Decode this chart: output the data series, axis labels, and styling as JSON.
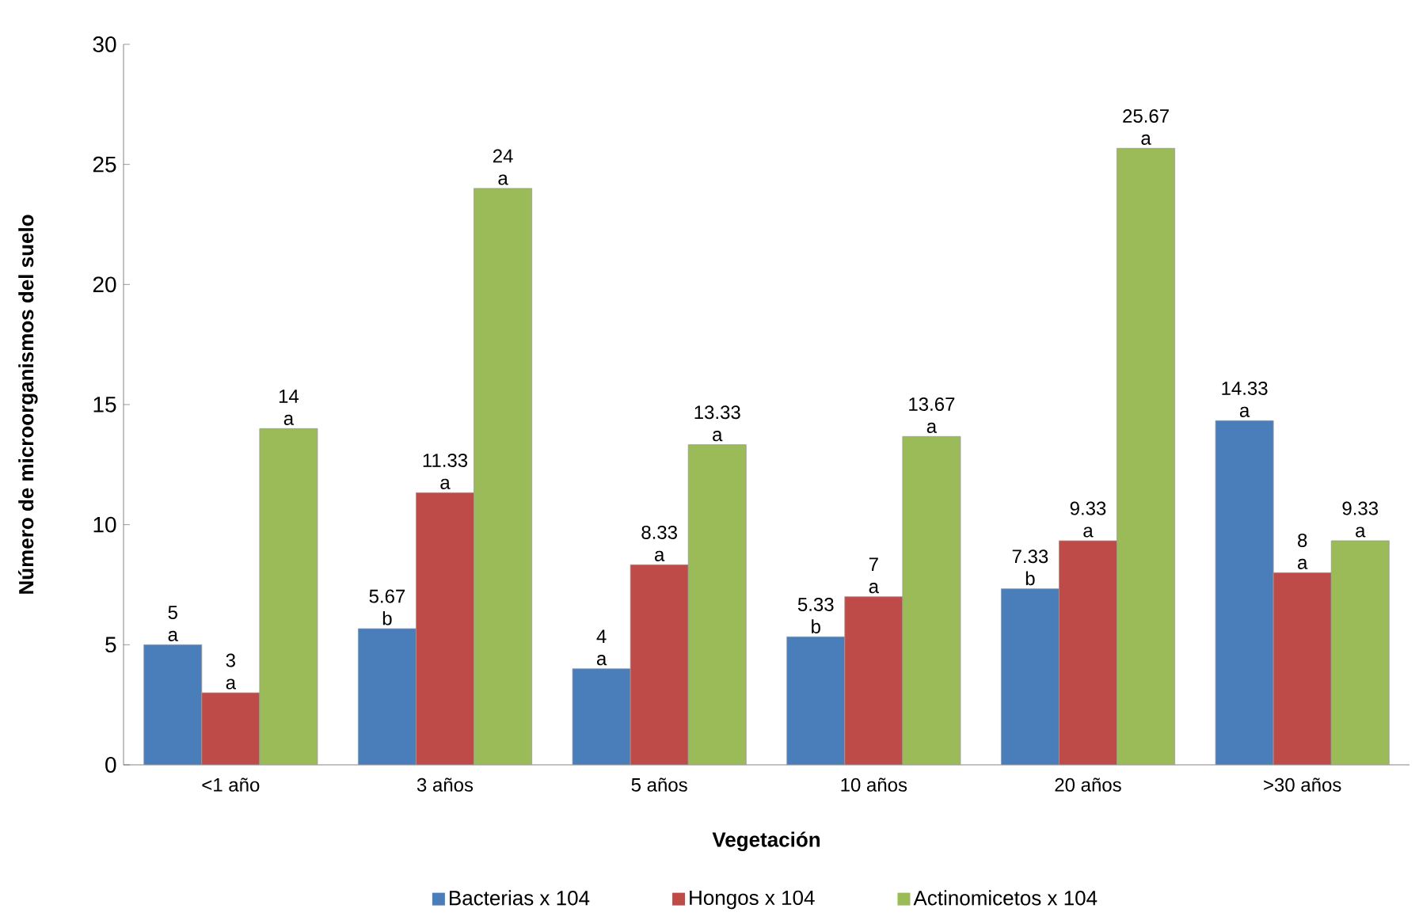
{
  "chart_data": {
    "type": "bar",
    "xlabel": "Vegetación",
    "ylabel": "Número de microorganismos del suelo",
    "categories": [
      "<1 año",
      "3 años",
      "5 años",
      "10 años",
      "20 años",
      ">30 años"
    ],
    "series": [
      {
        "name": "Bacterias x 104",
        "color": "#4a7ebb",
        "values": [
          5,
          5.67,
          4,
          5.33,
          7.33,
          14.33
        ],
        "value_labels": [
          "5 a",
          "5.67 b",
          "4 a",
          "5.33 b",
          "7.33 b",
          "14.33 a"
        ]
      },
      {
        "name": "Hongos x 104",
        "color": "#be4b48",
        "values": [
          3,
          11.33,
          8.33,
          7,
          9.33,
          8
        ],
        "value_labels": [
          "3 a",
          "11.33 a",
          "8.33 a",
          "7 a",
          "9.33 a",
          "8 a"
        ]
      },
      {
        "name": "Actinomicetos x 104",
        "color": "#9bbb59",
        "values": [
          14,
          24,
          13.33,
          13.67,
          25.67,
          9.33
        ],
        "value_labels": [
          "14 a",
          "24 a",
          "13.33 a",
          "13.67 a",
          "25.67 a",
          "9.33 a"
        ]
      }
    ],
    "ylim": [
      0,
      30
    ],
    "yticks": [
      0,
      5,
      10,
      15,
      20,
      25,
      30
    ],
    "grid": false,
    "legend": "bottom"
  }
}
